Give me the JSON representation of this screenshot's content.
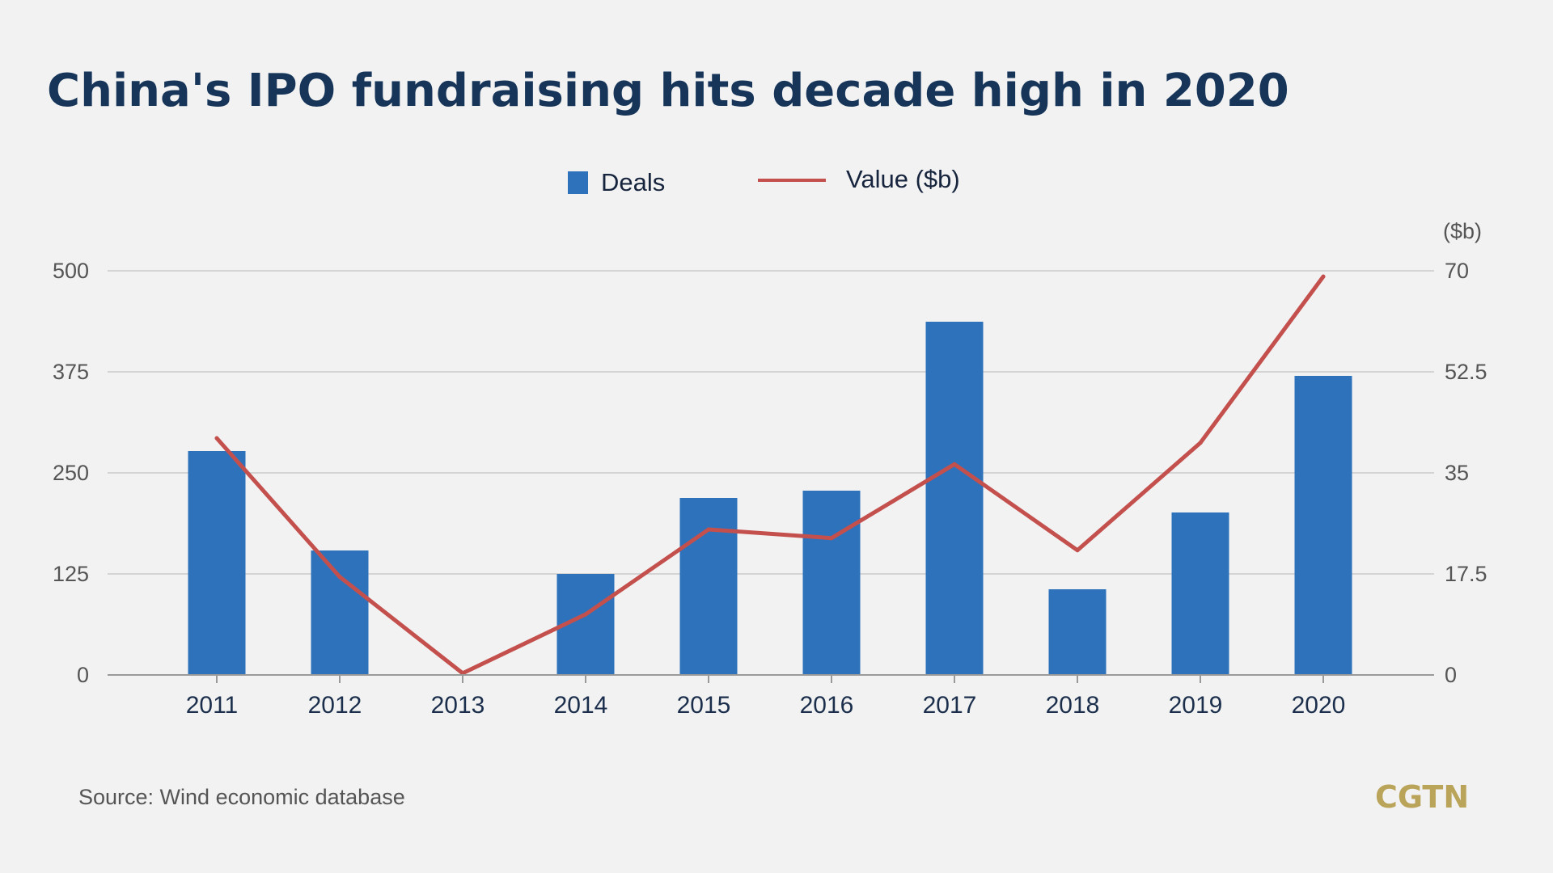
{
  "chart_data": {
    "type": "bar",
    "title": "China's IPO fundraising hits decade high in 2020",
    "categories": [
      "2011",
      "2012",
      "2013",
      "2014",
      "2015",
      "2016",
      "2017",
      "2018",
      "2019",
      "2020"
    ],
    "series": [
      {
        "name": "Deals",
        "type": "bar",
        "axis": "left",
        "color": "#2e72bc",
        "values": [
          277,
          154,
          0,
          125,
          219,
          228,
          437,
          106,
          201,
          370
        ]
      },
      {
        "name": "Value ($b)",
        "type": "line",
        "axis": "right",
        "color": "#c4504d",
        "values": [
          41,
          17,
          0.3,
          10.5,
          25.2,
          23.7,
          36.5,
          21.6,
          40.2,
          69
        ]
      }
    ],
    "left_axis": {
      "range": [
        0,
        500
      ],
      "ticks": [
        "0",
        "125",
        "250",
        "375",
        "500"
      ]
    },
    "right_axis": {
      "label": "($b)",
      "range": [
        0,
        70
      ],
      "ticks": [
        "0",
        "17.5",
        "35",
        "52.5",
        "70"
      ]
    },
    "grid": true,
    "legend_position": "top-center"
  },
  "source": "Source: Wind economic database",
  "logo_text": "CGTN"
}
